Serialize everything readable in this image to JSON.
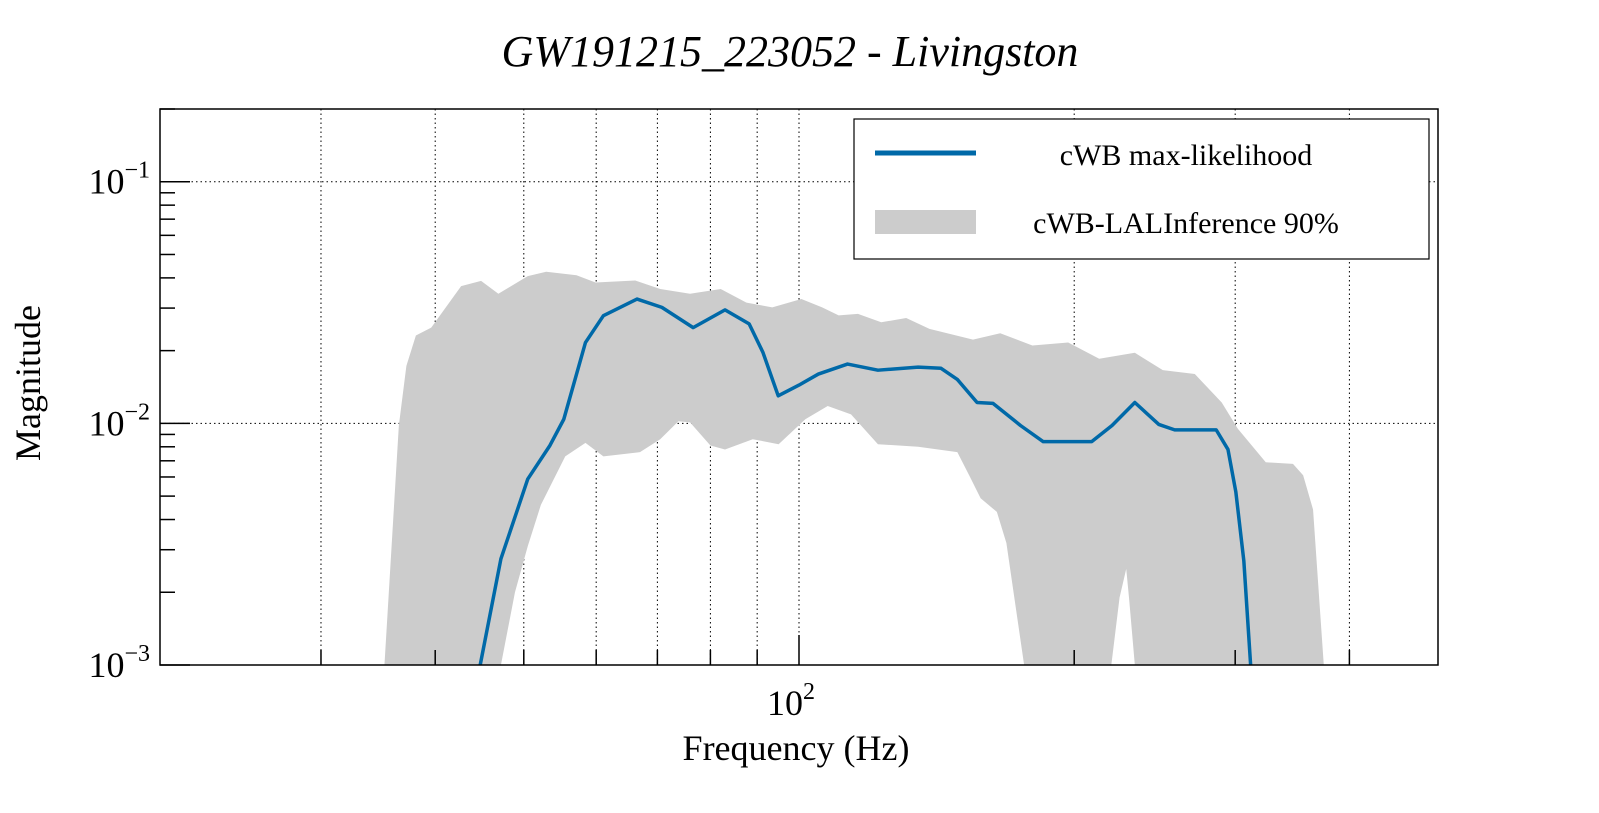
{
  "chart_data": {
    "type": "area",
    "title": "GW191215_223052 - Livingston",
    "xlabel": "Frequency (Hz)",
    "ylabel": "Magnitude",
    "xscale": "log",
    "yscale": "log",
    "xlim": [
      20,
      500
    ],
    "ylim": [
      0.001,
      0.2
    ],
    "grid": true,
    "legend_position": "top-right",
    "x_tick_labels": [
      {
        "value": 100,
        "base": "10",
        "exp": "2"
      }
    ],
    "y_tick_labels": [
      {
        "value": 0.001,
        "base": "10",
        "exp": "−3"
      },
      {
        "value": 0.01,
        "base": "10",
        "exp": "−2"
      },
      {
        "value": 0.1,
        "base": "10",
        "exp": "−1"
      }
    ],
    "series": [
      {
        "name": "cWB max-likelihood",
        "kind": "line",
        "color": "#0069a8",
        "points": [
          [
            44.8,
            0.001
          ],
          [
            47.2,
            0.00275
          ],
          [
            50.5,
            0.00588
          ],
          [
            53.4,
            0.0081
          ],
          [
            55.3,
            0.0104
          ],
          [
            58.4,
            0.0216
          ],
          [
            61.1,
            0.0279
          ],
          [
            66.5,
            0.0327
          ],
          [
            70.8,
            0.0302
          ],
          [
            76.6,
            0.0249
          ],
          [
            83.0,
            0.0295
          ],
          [
            88.2,
            0.0258
          ],
          [
            91.3,
            0.0197
          ],
          [
            94.9,
            0.013
          ],
          [
            100,
            0.0144
          ],
          [
            105,
            0.016
          ],
          [
            113,
            0.0176
          ],
          [
            122,
            0.0166
          ],
          [
            135,
            0.0171
          ],
          [
            143,
            0.0169
          ],
          [
            149,
            0.0152
          ],
          [
            156.6,
            0.0122
          ],
          [
            163,
            0.0121
          ],
          [
            174.7,
            0.0098
          ],
          [
            185,
            0.0084
          ],
          [
            209,
            0.0084
          ],
          [
            220,
            0.0098
          ],
          [
            233,
            0.0122
          ],
          [
            247.5,
            0.0099
          ],
          [
            257.6,
            0.0094
          ],
          [
            286,
            0.0094
          ],
          [
            294.6,
            0.0078
          ],
          [
            300.5,
            0.0052
          ],
          [
            306.6,
            0.0027
          ],
          [
            311.9,
            0.001
          ]
        ]
      },
      {
        "name": "cWB-LALInference 90%",
        "kind": "band",
        "color": "#cccccc",
        "upper": [
          [
            35.2,
            0.001
          ],
          [
            36.5,
            0.0098
          ],
          [
            37.2,
            0.0173
          ],
          [
            38.1,
            0.0231
          ],
          [
            39.6,
            0.0249
          ],
          [
            42.7,
            0.037
          ],
          [
            44.9,
            0.0389
          ],
          [
            46.9,
            0.0344
          ],
          [
            50.5,
            0.0407
          ],
          [
            52.9,
            0.0424
          ],
          [
            57.1,
            0.041
          ],
          [
            59.9,
            0.0383
          ],
          [
            66.2,
            0.039
          ],
          [
            70.5,
            0.036
          ],
          [
            76.0,
            0.0344
          ],
          [
            82.1,
            0.036
          ],
          [
            87.6,
            0.0316
          ],
          [
            93.5,
            0.0302
          ],
          [
            100.6,
            0.0327
          ],
          [
            106,
            0.0302
          ],
          [
            110.5,
            0.028
          ],
          [
            116,
            0.0284
          ],
          [
            123,
            0.0262
          ],
          [
            131,
            0.0273
          ],
          [
            138.9,
            0.0246
          ],
          [
            155,
            0.0222
          ],
          [
            166,
            0.0236
          ],
          [
            180,
            0.021
          ],
          [
            197,
            0.0216
          ],
          [
            213,
            0.0185
          ],
          [
            233,
            0.0196
          ],
          [
            250,
            0.0166
          ],
          [
            271,
            0.016
          ],
          [
            290,
            0.0122
          ],
          [
            302,
            0.0095
          ],
          [
            324,
            0.0069
          ],
          [
            347,
            0.0068
          ],
          [
            356,
            0.0061
          ],
          [
            365,
            0.0044
          ],
          [
            375,
            0.001
          ]
        ],
        "lower": [
          [
            35.2,
            0.001
          ],
          [
            47.2,
            0.001
          ],
          [
            48.9,
            0.002
          ],
          [
            50.5,
            0.0031
          ],
          [
            52.2,
            0.0046
          ],
          [
            55.5,
            0.0073
          ],
          [
            58.4,
            0.0083
          ],
          [
            61.1,
            0.0073
          ],
          [
            67,
            0.0076
          ],
          [
            70.5,
            0.0086
          ],
          [
            73.8,
            0.0102
          ],
          [
            76,
            0.0101
          ],
          [
            80,
            0.0081
          ],
          [
            83,
            0.0078
          ],
          [
            89,
            0.0086
          ],
          [
            95,
            0.0082
          ],
          [
            101.6,
            0.0104
          ],
          [
            107.5,
            0.0118
          ],
          [
            114,
            0.0109
          ],
          [
            122,
            0.0082
          ],
          [
            135,
            0.008
          ],
          [
            149,
            0.0076
          ],
          [
            153.5,
            0.0061
          ],
          [
            158,
            0.0049
          ],
          [
            164.6,
            0.0043
          ],
          [
            168.6,
            0.0032
          ],
          [
            176.3,
            0.001
          ],
          [
            219.6,
            0.001
          ],
          [
            224.2,
            0.0019
          ],
          [
            228,
            0.0025
          ],
          [
            229.6,
            0.0019
          ],
          [
            233,
            0.001
          ],
          [
            375,
            0.001
          ]
        ]
      }
    ]
  }
}
